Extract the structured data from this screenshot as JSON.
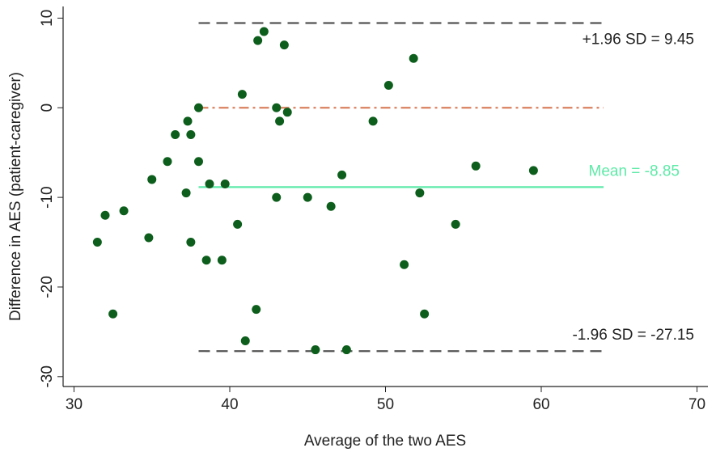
{
  "chart_data": {
    "type": "scatter",
    "x_label": "Average of the two AES",
    "y_label": "Difference in AES (patient-caregiver)",
    "xlim": [
      29.3,
      70.7
    ],
    "ylim": [
      -31.1,
      11.3
    ],
    "xticks": [
      30,
      40,
      50,
      60,
      70
    ],
    "yticks": [
      -30,
      -20,
      -10,
      0,
      10
    ],
    "color": "#0d5e1c",
    "x": [
      31.5,
      32,
      32.5,
      33.2,
      34.8,
      35,
      36,
      36.5,
      37.2,
      37.3,
      37.5,
      37.5,
      38,
      38,
      38.5,
      38.7,
      39.5,
      39.7,
      40.5,
      40.8,
      41,
      41.7,
      41.8,
      42.2,
      43,
      43,
      43.2,
      43.5,
      43.7,
      45,
      45.5,
      46.5,
      47.2,
      47.5,
      49.2,
      50.2,
      51.2,
      51.8,
      52.2,
      52.5,
      54.5,
      55.8,
      59.5
    ],
    "values": [
      -15,
      -12,
      -23,
      -11.5,
      -14.5,
      -8,
      -6,
      -3,
      -9.5,
      -1.5,
      -3,
      -15,
      0,
      -6,
      -17,
      -8.5,
      -17,
      -8.5,
      -13,
      1.5,
      -26,
      -22.5,
      7.5,
      8.5,
      0,
      -10,
      -1.5,
      7,
      -0.5,
      -10,
      -27,
      -11,
      -7.5,
      -27,
      -1.5,
      2.5,
      -17.5,
      5.5,
      -9.5,
      -23,
      -13,
      -6.5,
      -7
    ],
    "reference_lines": [
      {
        "label": "+1.96 SD = 9.45",
        "value": 9.45,
        "x": [
          38,
          64
        ],
        "color": "#555555",
        "style": "dashed"
      },
      {
        "value": 0,
        "x": [
          38,
          64
        ],
        "color": "#d9805f",
        "style": "dashdot"
      },
      {
        "label": "Mean = -8.85",
        "value": -8.85,
        "x": [
          38,
          64
        ],
        "color": "#5eeaa8",
        "style": "solid"
      },
      {
        "label": "-1.96 SD = -27.15",
        "value": -27.15,
        "x": [
          38,
          64
        ],
        "color": "#555555",
        "style": "dashed"
      }
    ]
  }
}
